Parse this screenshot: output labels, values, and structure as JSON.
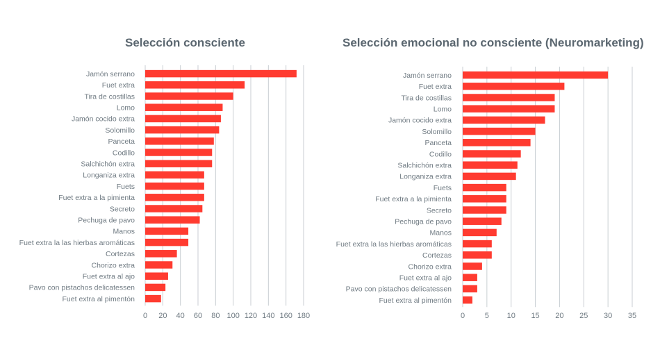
{
  "chart_data": [
    {
      "type": "bar",
      "title": "Selección consciente",
      "categories": [
        "Jamón serrano",
        "Fuet extra",
        "Tira de costillas",
        "Lomo",
        "Jamón cocido extra",
        "Solomillo",
        "Panceta",
        "Codillo",
        "Salchichón extra",
        "Longaniza extra",
        "Fuets",
        "Fuet extra a la pimienta",
        "Secreto",
        "Pechuga de pavo",
        "Manos",
        "Fuet extra la  las hierbas aromáticas",
        "Cortezas",
        "Chorizo extra",
        "Fuet extra al ajo",
        "Pavo con pistachos delicatessen",
        "Fuet extra al pimentón"
      ],
      "values": [
        172,
        113,
        100,
        88,
        86,
        84,
        78,
        76,
        76,
        67,
        67,
        67,
        65,
        62,
        49,
        49,
        36,
        31,
        26,
        23,
        18
      ],
      "xlim": [
        0,
        180
      ],
      "xticks": [
        0,
        20,
        40,
        60,
        80,
        100,
        120,
        140,
        160,
        180
      ],
      "bar_color": "#ff3b30",
      "grid": true
    },
    {
      "type": "bar",
      "title": "Selección emocional no consciente (Neuromarketing)",
      "categories": [
        "Jamón serrano",
        "Fuet extra",
        "Tira de costillas",
        "Lomo",
        "Jamón cocido extra",
        "Solomillo",
        "Panceta",
        "Codillo",
        "Salchichón extra",
        "Longaniza extra",
        "Fuets",
        "Fuet extra a la pimienta",
        "Secreto",
        "Pechuga de pavo",
        "Manos",
        "Fuet extra la  las hierbas aromáticas",
        "Cortezas",
        "Chorizo extra",
        "Fuet extra al ajo",
        "Pavo con pistachos delicatessen",
        "Fuet extra al pimentón"
      ],
      "values": [
        30,
        21,
        19,
        19,
        17,
        15,
        14,
        12,
        11.3,
        11,
        9,
        9,
        9,
        8,
        7,
        6,
        6,
        4,
        3,
        3,
        2
      ],
      "xlim": [
        0,
        35
      ],
      "xticks": [
        0,
        5,
        10,
        15,
        20,
        25,
        30,
        35
      ],
      "bar_color": "#ff3b30",
      "grid": true
    }
  ]
}
